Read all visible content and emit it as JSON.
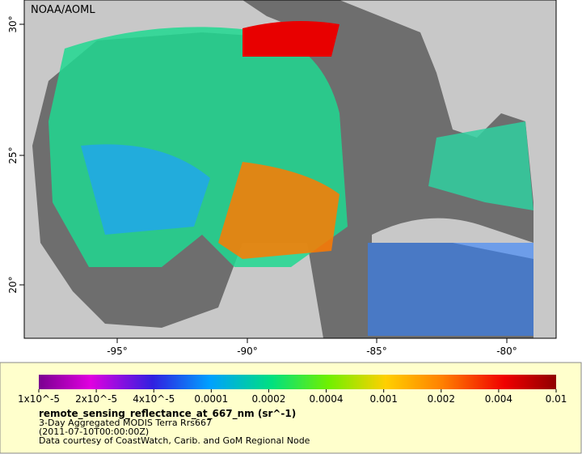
{
  "map": {
    "badge": "NOAA/AOML",
    "lon_labels": [
      "-95°",
      "-90°",
      "-85°",
      "-80°"
    ],
    "lat_labels": [
      "30°",
      "25°",
      "20°"
    ]
  },
  "legend": {
    "ticks": [
      "1x10^-5",
      "2x10^-5",
      "4x10^-5",
      "0.0001",
      "0.0002",
      "0.0004",
      "0.001",
      "0.002",
      "0.004",
      "0.01"
    ],
    "title": "remote_sensing_reflectance_at_667_nm (sr^-1)",
    "lines": [
      "3-Day Aggregated MODIS Terra Rrs667",
      "(2011-07-10T00:00:00Z)",
      "Data courtesy of CoastWatch, Carib. and GoM Regional Node"
    ]
  }
}
